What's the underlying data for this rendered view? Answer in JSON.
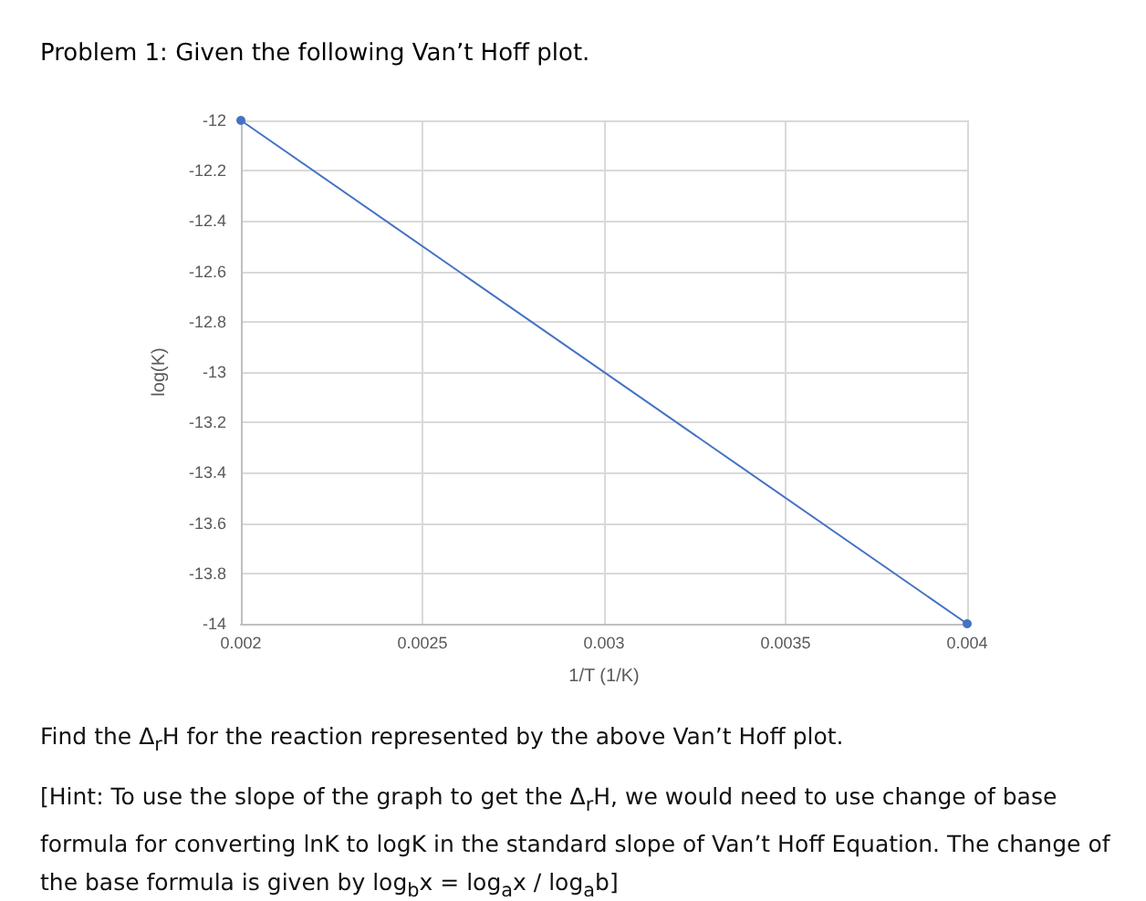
{
  "chart_data": {
    "type": "line",
    "title": "Problem 1: Given the following Van’t Hoff plot.",
    "xlabel": "1/T (1/K)",
    "ylabel": "log(K)",
    "x": [
      0.002,
      0.004
    ],
    "series": [
      {
        "color": "#4472c4",
        "values": [
          -12,
          -14
        ]
      }
    ],
    "xlim": [
      0.002,
      0.004
    ],
    "xticks": [
      0.002,
      0.0025,
      0.003,
      0.0035,
      0.004
    ],
    "ylim": [
      -14,
      -12
    ],
    "yticks": [
      -14,
      -13.8,
      -13.6,
      -13.4,
      -13.2,
      -13,
      -12.8,
      -12.6,
      -12.4,
      -12.2,
      -12
    ],
    "grid": true,
    "marker": "circle",
    "line_style": "solid",
    "annotations": [
      "Find the Δ$_{r}$H for the reaction represented by the above Van’t Hoff plot.",
      "[Hint: To use the slope of the graph to get the Δ$_{r}$H, we would need to use change of base formula for converting lnK to logK in the standard slope of Van’t Hoff Equation. The change of the base formula is given by log$_{b}$x = log$_{a}$x / log$_{a}$b]"
    ]
  }
}
